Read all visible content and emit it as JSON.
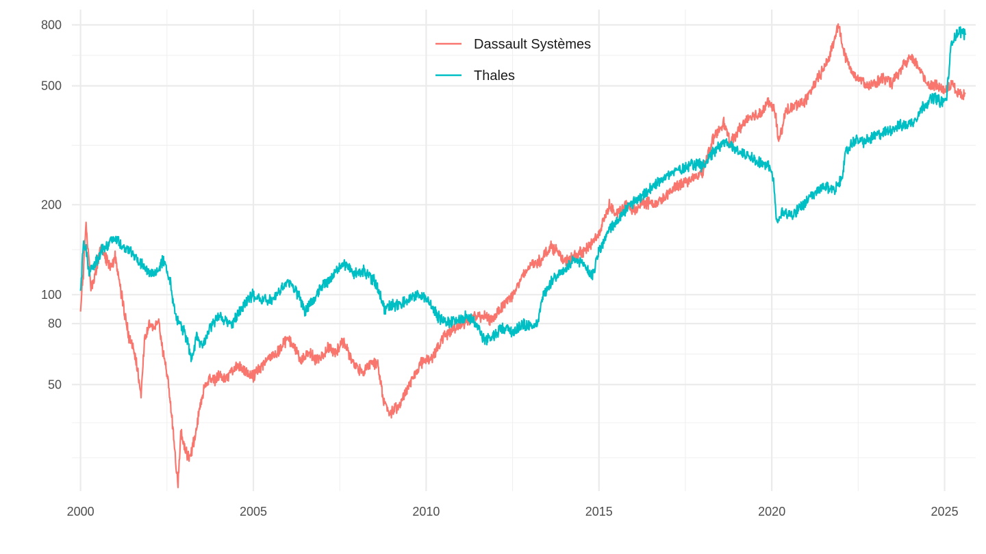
{
  "chart_data": {
    "type": "line",
    "title": "",
    "xlabel": "",
    "ylabel": "",
    "y_scale": "log",
    "xlim": [
      1999.75,
      2025.9
    ],
    "ylim": [
      22,
      900
    ],
    "x_ticks": [
      2000,
      2005,
      2010,
      2015,
      2020,
      2025
    ],
    "x_tick_labels": [
      "2000",
      "2005",
      "2010",
      "2015",
      "2020",
      "2025"
    ],
    "y_ticks": [
      50,
      80,
      100,
      200,
      500,
      800
    ],
    "y_tick_labels": [
      "50",
      "80",
      "100",
      "200",
      "500",
      "800"
    ],
    "grid": true,
    "legend_position": "top-center",
    "series": [
      {
        "name": "Dassault Systèmes",
        "color": "#F8766D",
        "points": [
          [
            2000.0,
            90
          ],
          [
            2000.08,
            118
          ],
          [
            2000.16,
            175
          ],
          [
            2000.22,
            140
          ],
          [
            2000.3,
            105
          ],
          [
            2000.45,
            120
          ],
          [
            2000.6,
            145
          ],
          [
            2000.75,
            130
          ],
          [
            2000.9,
            122
          ],
          [
            2001.0,
            135
          ],
          [
            2001.1,
            115
          ],
          [
            2001.25,
            90
          ],
          [
            2001.4,
            72
          ],
          [
            2001.55,
            65
          ],
          [
            2001.65,
            56
          ],
          [
            2001.75,
            45
          ],
          [
            2001.85,
            70
          ],
          [
            2002.0,
            80
          ],
          [
            2002.15,
            78
          ],
          [
            2002.25,
            82
          ],
          [
            2002.35,
            68
          ],
          [
            2002.45,
            58
          ],
          [
            2002.55,
            50
          ],
          [
            2002.65,
            38
          ],
          [
            2002.75,
            28
          ],
          [
            2002.82,
            23
          ],
          [
            2002.9,
            35
          ],
          [
            2003.0,
            31
          ],
          [
            2003.15,
            28
          ],
          [
            2003.3,
            33
          ],
          [
            2003.45,
            42
          ],
          [
            2003.6,
            50
          ],
          [
            2003.75,
            53
          ],
          [
            2003.9,
            52
          ],
          [
            2004.0,
            54
          ],
          [
            2004.2,
            52
          ],
          [
            2004.4,
            56
          ],
          [
            2004.6,
            58
          ],
          [
            2004.8,
            55
          ],
          [
            2005.0,
            53
          ],
          [
            2005.2,
            57
          ],
          [
            2005.4,
            61
          ],
          [
            2005.6,
            63
          ],
          [
            2005.8,
            66
          ],
          [
            2006.0,
            72
          ],
          [
            2006.2,
            66
          ],
          [
            2006.4,
            60
          ],
          [
            2006.6,
            65
          ],
          [
            2006.8,
            60
          ],
          [
            2007.0,
            63
          ],
          [
            2007.2,
            67
          ],
          [
            2007.4,
            64
          ],
          [
            2007.6,
            70
          ],
          [
            2007.8,
            62
          ],
          [
            2008.0,
            57
          ],
          [
            2008.2,
            55
          ],
          [
            2008.4,
            60
          ],
          [
            2008.6,
            58
          ],
          [
            2008.75,
            45
          ],
          [
            2008.95,
            40
          ],
          [
            2009.2,
            42
          ],
          [
            2009.5,
            50
          ],
          [
            2009.7,
            55
          ],
          [
            2009.9,
            60
          ],
          [
            2010.2,
            62
          ],
          [
            2010.5,
            72
          ],
          [
            2010.8,
            77
          ],
          [
            2011.0,
            80
          ],
          [
            2011.3,
            83
          ],
          [
            2011.6,
            85
          ],
          [
            2011.9,
            82
          ],
          [
            2012.2,
            92
          ],
          [
            2012.5,
            100
          ],
          [
            2012.8,
            115
          ],
          [
            2013.0,
            125
          ],
          [
            2013.3,
            130
          ],
          [
            2013.6,
            145
          ],
          [
            2013.8,
            140
          ],
          [
            2014.0,
            128
          ],
          [
            2014.3,
            135
          ],
          [
            2014.6,
            140
          ],
          [
            2014.8,
            150
          ],
          [
            2015.0,
            160
          ],
          [
            2015.3,
            200
          ],
          [
            2015.5,
            185
          ],
          [
            2015.8,
            200
          ],
          [
            2016.0,
            190
          ],
          [
            2016.3,
            205
          ],
          [
            2016.6,
            200
          ],
          [
            2016.9,
            210
          ],
          [
            2017.2,
            230
          ],
          [
            2017.5,
            240
          ],
          [
            2017.8,
            245
          ],
          [
            2018.0,
            260
          ],
          [
            2018.3,
            330
          ],
          [
            2018.6,
            380
          ],
          [
            2018.8,
            320
          ],
          [
            2019.0,
            350
          ],
          [
            2019.3,
            390
          ],
          [
            2019.6,
            400
          ],
          [
            2019.9,
            440
          ],
          [
            2020.1,
            410
          ],
          [
            2020.2,
            320
          ],
          [
            2020.4,
            410
          ],
          [
            2020.7,
            430
          ],
          [
            2021.0,
            450
          ],
          [
            2021.3,
            520
          ],
          [
            2021.6,
            600
          ],
          [
            2021.8,
            700
          ],
          [
            2021.92,
            810
          ],
          [
            2022.1,
            640
          ],
          [
            2022.3,
            560
          ],
          [
            2022.6,
            520
          ],
          [
            2022.9,
            500
          ],
          [
            2023.2,
            530
          ],
          [
            2023.5,
            510
          ],
          [
            2023.8,
            580
          ],
          [
            2024.0,
            620
          ],
          [
            2024.2,
            590
          ],
          [
            2024.5,
            510
          ],
          [
            2024.8,
            500
          ],
          [
            2025.0,
            480
          ],
          [
            2025.2,
            510
          ],
          [
            2025.4,
            470
          ],
          [
            2025.6,
            470
          ]
        ]
      },
      {
        "name": "Thales",
        "color": "#00BFC4",
        "points": [
          [
            2000.0,
            100
          ],
          [
            2000.08,
            150
          ],
          [
            2000.16,
            140
          ],
          [
            2000.25,
            118
          ],
          [
            2000.4,
            125
          ],
          [
            2000.6,
            140
          ],
          [
            2000.85,
            150
          ],
          [
            2001.0,
            158
          ],
          [
            2001.2,
            145
          ],
          [
            2001.4,
            140
          ],
          [
            2001.6,
            133
          ],
          [
            2001.8,
            125
          ],
          [
            2002.0,
            118
          ],
          [
            2002.2,
            120
          ],
          [
            2002.4,
            130
          ],
          [
            2002.6,
            110
          ],
          [
            2002.75,
            85
          ],
          [
            2002.9,
            80
          ],
          [
            2003.1,
            70
          ],
          [
            2003.2,
            60
          ],
          [
            2003.35,
            72
          ],
          [
            2003.55,
            68
          ],
          [
            2003.75,
            78
          ],
          [
            2004.0,
            85
          ],
          [
            2004.2,
            82
          ],
          [
            2004.4,
            80
          ],
          [
            2004.6,
            88
          ],
          [
            2004.8,
            95
          ],
          [
            2005.0,
            100
          ],
          [
            2005.3,
            95
          ],
          [
            2005.6,
            98
          ],
          [
            2005.9,
            108
          ],
          [
            2006.0,
            112
          ],
          [
            2006.3,
            100
          ],
          [
            2006.5,
            88
          ],
          [
            2006.8,
            98
          ],
          [
            2007.0,
            108
          ],
          [
            2007.3,
            115
          ],
          [
            2007.6,
            128
          ],
          [
            2007.9,
            118
          ],
          [
            2008.2,
            120
          ],
          [
            2008.5,
            112
          ],
          [
            2008.8,
            90
          ],
          [
            2009.1,
            92
          ],
          [
            2009.4,
            95
          ],
          [
            2009.7,
            100
          ],
          [
            2010.0,
            98
          ],
          [
            2010.3,
            85
          ],
          [
            2010.6,
            80
          ],
          [
            2010.9,
            82
          ],
          [
            2011.2,
            85
          ],
          [
            2011.5,
            78
          ],
          [
            2011.7,
            70
          ],
          [
            2011.9,
            72
          ],
          [
            2012.2,
            78
          ],
          [
            2012.5,
            75
          ],
          [
            2012.8,
            80
          ],
          [
            2013.0,
            78
          ],
          [
            2013.2,
            80
          ],
          [
            2013.4,
            100
          ],
          [
            2013.7,
            115
          ],
          [
            2014.0,
            120
          ],
          [
            2014.3,
            130
          ],
          [
            2014.6,
            125
          ],
          [
            2014.8,
            115
          ],
          [
            2015.0,
            140
          ],
          [
            2015.3,
            165
          ],
          [
            2015.6,
            180
          ],
          [
            2015.9,
            200
          ],
          [
            2016.2,
            210
          ],
          [
            2016.5,
            225
          ],
          [
            2016.8,
            245
          ],
          [
            2017.1,
            255
          ],
          [
            2017.4,
            265
          ],
          [
            2017.7,
            275
          ],
          [
            2018.0,
            270
          ],
          [
            2018.3,
            300
          ],
          [
            2018.6,
            325
          ],
          [
            2018.9,
            310
          ],
          [
            2019.1,
            300
          ],
          [
            2019.4,
            290
          ],
          [
            2019.7,
            275
          ],
          [
            2019.9,
            270
          ],
          [
            2020.05,
            240
          ],
          [
            2020.15,
            170
          ],
          [
            2020.3,
            190
          ],
          [
            2020.6,
            185
          ],
          [
            2020.9,
            200
          ],
          [
            2021.2,
            215
          ],
          [
            2021.5,
            230
          ],
          [
            2021.8,
            225
          ],
          [
            2022.0,
            240
          ],
          [
            2022.15,
            300
          ],
          [
            2022.4,
            330
          ],
          [
            2022.7,
            325
          ],
          [
            2023.0,
            340
          ],
          [
            2023.3,
            350
          ],
          [
            2023.6,
            365
          ],
          [
            2023.9,
            370
          ],
          [
            2024.1,
            380
          ],
          [
            2024.4,
            430
          ],
          [
            2024.7,
            460
          ],
          [
            2024.9,
            440
          ],
          [
            2025.05,
            450
          ],
          [
            2025.2,
            700
          ],
          [
            2025.35,
            750
          ],
          [
            2025.5,
            760
          ],
          [
            2025.6,
            740
          ]
        ]
      }
    ]
  }
}
